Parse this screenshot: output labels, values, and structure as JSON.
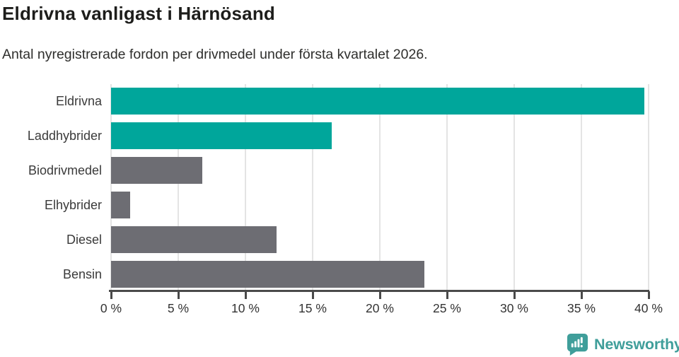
{
  "header": {
    "title": "Eldrivna vanligast i Härnösand",
    "subtitle": "Antal nyregistrerade fordon per drivmedel under första kvartalet 2026."
  },
  "chart_data": {
    "type": "bar",
    "orientation": "horizontal",
    "title": "Eldrivna vanligast i Härnösand",
    "subtitle": "Antal nyregistrerade fordon per drivmedel under första kvartalet 2026.",
    "categories": [
      "Eldrivna",
      "Laddhybrider",
      "Biodrivmedel",
      "Elhybrider",
      "Diesel",
      "Bensin"
    ],
    "values": [
      39.7,
      16.4,
      6.8,
      1.4,
      12.3,
      23.3
    ],
    "unit": "%",
    "bar_colors": [
      "#00a69b",
      "#00a69b",
      "#6d6d73",
      "#6d6d73",
      "#6d6d73",
      "#6d6d73"
    ],
    "xlabel": "",
    "ylabel": "",
    "xlim": [
      0,
      40
    ],
    "x_tick_values": [
      0,
      5,
      10,
      15,
      20,
      25,
      30,
      35,
      40
    ],
    "x_tick_labels": [
      "0 %",
      "5 %",
      "10 %",
      "15 %",
      "20 %",
      "25 %",
      "30 %",
      "35 %",
      "40 %"
    ],
    "grid": true,
    "legend_position": "none"
  },
  "colors": {
    "accent_teal": "#00a69b",
    "neutral_gray": "#6d6d73",
    "axis": "#4a4a4a",
    "gridline": "#e4e4e4",
    "title_text": "#1d1d1b",
    "logo_teal": "#3f9e9a"
  },
  "footer": {
    "logo_text": "Newsworthy"
  }
}
